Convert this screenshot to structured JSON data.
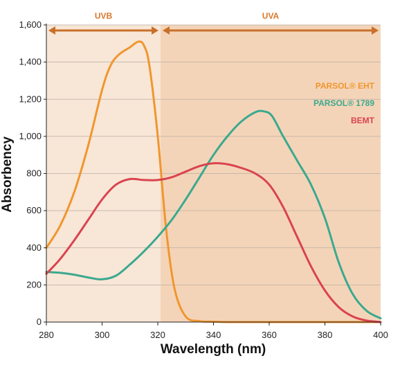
{
  "chart_data": {
    "type": "line",
    "xlabel": "Wavelength (nm)",
    "ylabel": "Absorbency",
    "xlim": [
      280,
      400
    ],
    "ylim": [
      0,
      1600
    ],
    "x_ticks": [
      "280",
      "300",
      "320",
      "340",
      "360",
      "380",
      "400"
    ],
    "y_ticks": [
      "0",
      "200",
      "400",
      "600",
      "800",
      "1,000",
      "1,200",
      "1,400",
      "1,600"
    ],
    "grid": "horizontal",
    "legend_position": "right",
    "bands": [
      {
        "label": "UVB",
        "x_range": [
          280,
          321
        ],
        "color": "#f8e6d6",
        "label_color": "#d9772a"
      },
      {
        "label": "UVA",
        "x_range": [
          321,
          400
        ],
        "color": "#f4d4b8",
        "label_color": "#d9772a"
      }
    ],
    "band_arrow_color": "#c8702a",
    "series": [
      {
        "name": "PARSOL® EHT",
        "color": "#f0962e",
        "x": [
          280,
          285,
          290,
          295,
          300,
          303,
          306,
          310,
          313,
          315,
          317,
          320,
          323,
          326,
          330,
          335,
          340,
          345,
          350,
          360,
          370,
          380,
          390,
          400
        ],
        "y": [
          400,
          520,
          700,
          950,
          1250,
          1380,
          1440,
          1480,
          1510,
          1490,
          1380,
          1000,
          500,
          180,
          30,
          5,
          2,
          0,
          0,
          0,
          0,
          0,
          0,
          0
        ]
      },
      {
        "name": "PARSOL® 1789",
        "color": "#3aa98f",
        "x": [
          280,
          285,
          290,
          295,
          300,
          305,
          310,
          315,
          320,
          325,
          330,
          335,
          340,
          345,
          350,
          355,
          358,
          361,
          365,
          370,
          375,
          380,
          385,
          390,
          395,
          400
        ],
        "y": [
          270,
          265,
          255,
          240,
          230,
          250,
          310,
          380,
          460,
          550,
          660,
          780,
          900,
          1000,
          1080,
          1130,
          1135,
          1110,
          1000,
          870,
          740,
          560,
          320,
          150,
          60,
          20
        ]
      },
      {
        "name": "BEMT",
        "color": "#d9434f",
        "x": [
          280,
          285,
          290,
          295,
          300,
          305,
          310,
          315,
          320,
          325,
          330,
          335,
          340,
          345,
          350,
          355,
          360,
          365,
          370,
          375,
          380,
          385,
          390,
          395,
          400
        ],
        "y": [
          260,
          340,
          440,
          550,
          660,
          740,
          770,
          765,
          765,
          780,
          810,
          840,
          855,
          850,
          830,
          800,
          740,
          620,
          460,
          300,
          170,
          80,
          30,
          8,
          0
        ]
      }
    ]
  }
}
